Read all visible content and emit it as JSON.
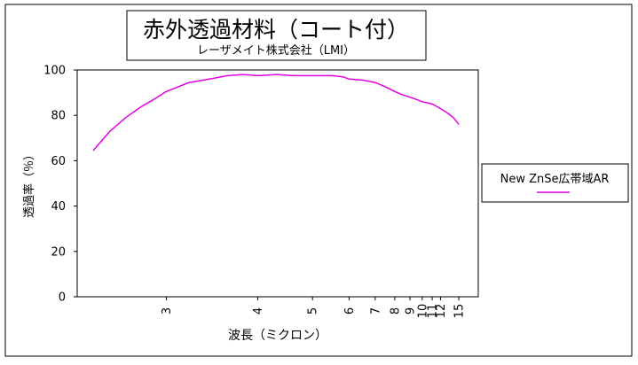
{
  "chart_data": {
    "type": "line",
    "title": "赤外透過材料（コート付）",
    "subtitle": "レーザメイト株式会社（LMI）",
    "xlabel": "波長（ミクロン）",
    "ylabel": "透過率（％）",
    "ylim": [
      0,
      100
    ],
    "yticks": [
      "0",
      "20",
      "40",
      "60",
      "80",
      "100"
    ],
    "x_scale": "reciprocal",
    "xticks": [
      "3",
      "4",
      "5",
      "6",
      "7",
      "8",
      "9",
      "10",
      "11",
      "12",
      "15"
    ],
    "grid": false,
    "legend_position": "right",
    "series": [
      {
        "name": "New ZnSe広帯域AR",
        "color": "#e400e4",
        "x": [
          2.5,
          2.6,
          2.7,
          2.8,
          2.9,
          3.0,
          3.2,
          3.4,
          3.6,
          3.8,
          4.0,
          4.3,
          4.6,
          5.0,
          5.5,
          5.8,
          6.0,
          6.5,
          7.0,
          7.5,
          8.0,
          8.5,
          9.0,
          9.5,
          10.0,
          10.5,
          11.0,
          11.5,
          12.0,
          13.0,
          14.0,
          15.0
        ],
        "y": [
          64.5,
          73,
          79,
          83.5,
          87,
          90.5,
          94.5,
          96,
          97.5,
          98,
          97.5,
          98,
          97.5,
          97.5,
          97.5,
          97,
          96,
          95.5,
          94.5,
          92.5,
          90.5,
          89,
          88,
          87,
          86,
          85.5,
          85,
          84,
          83,
          81,
          79,
          76
        ]
      }
    ]
  }
}
